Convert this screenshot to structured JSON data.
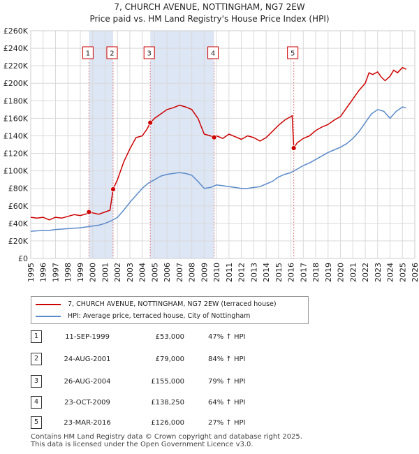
{
  "chart_data": {
    "type": "line",
    "title": "7, CHURCH AVENUE, NOTTINGHAM, NG7 2EW",
    "subtitle": "Price paid vs. HM Land Registry's House Price Index (HPI)",
    "xlabel": "",
    "ylabel": "",
    "xlim": [
      1995,
      2026
    ],
    "ylim": [
      0,
      260000
    ],
    "grid": true,
    "x_ticks": [
      "1995",
      "1996",
      "1997",
      "1998",
      "1999",
      "2000",
      "2001",
      "2002",
      "2003",
      "2004",
      "2005",
      "2006",
      "2007",
      "2008",
      "2009",
      "2010",
      "2011",
      "2012",
      "2013",
      "2014",
      "2015",
      "2016",
      "2017",
      "2018",
      "2019",
      "2020",
      "2021",
      "2022",
      "2023",
      "2024",
      "2025",
      "2026"
    ],
    "y_ticks": [
      {
        "value": 0,
        "label": "£0"
      },
      {
        "value": 20000,
        "label": "£20K"
      },
      {
        "value": 40000,
        "label": "£40K"
      },
      {
        "value": 60000,
        "label": "£60K"
      },
      {
        "value": 80000,
        "label": "£80K"
      },
      {
        "value": 100000,
        "label": "£100K"
      },
      {
        "value": 120000,
        "label": "£120K"
      },
      {
        "value": 140000,
        "label": "£140K"
      },
      {
        "value": 160000,
        "label": "£160K"
      },
      {
        "value": 180000,
        "label": "£180K"
      },
      {
        "value": 200000,
        "label": "£200K"
      },
      {
        "value": 220000,
        "label": "£220K"
      },
      {
        "value": 240000,
        "label": "£240K"
      },
      {
        "value": 260000,
        "label": "£260K"
      }
    ],
    "series": [
      {
        "name": "7, CHURCH AVENUE, NOTTINGHAM, NG7 2EW (terraced house)",
        "color": "#cc0000",
        "x": [
          1995.0,
          1995.5,
          1996.0,
          1996.5,
          1997.0,
          1997.5,
          1998.0,
          1998.5,
          1999.0,
          1999.5,
          1999.7,
          2000.0,
          2000.5,
          2001.0,
          2001.4,
          2001.65,
          2002.0,
          2002.5,
          2003.0,
          2003.5,
          2004.0,
          2004.4,
          2004.65,
          2005.0,
          2005.5,
          2006.0,
          2006.5,
          2007.0,
          2007.5,
          2008.0,
          2008.5,
          2009.0,
          2009.5,
          2009.8,
          2010.0,
          2010.5,
          2011.0,
          2011.5,
          2012.0,
          2012.5,
          2013.0,
          2013.5,
          2014.0,
          2014.5,
          2015.0,
          2015.5,
          2016.0,
          2016.1,
          2016.23,
          2016.5,
          2017.0,
          2017.5,
          2018.0,
          2018.5,
          2019.0,
          2019.5,
          2020.0,
          2020.5,
          2021.0,
          2021.5,
          2022.0,
          2022.3,
          2022.6,
          2023.0,
          2023.3,
          2023.6,
          2024.0,
          2024.3,
          2024.6,
          2025.0,
          2025.3
        ],
        "values": [
          47000,
          46000,
          47000,
          44000,
          47000,
          46000,
          48000,
          50000,
          49000,
          51000,
          53000,
          52000,
          50500,
          53000,
          55000,
          79000,
          90000,
          110000,
          125000,
          138000,
          140000,
          148000,
          155000,
          160000,
          165000,
          170000,
          172000,
          175000,
          173000,
          170000,
          160000,
          142000,
          140000,
          138250,
          140000,
          137000,
          142000,
          139000,
          136000,
          140000,
          138000,
          134000,
          138000,
          145000,
          152000,
          158000,
          162000,
          163000,
          126000,
          132000,
          137000,
          140000,
          146000,
          150000,
          153000,
          158000,
          162000,
          172000,
          182000,
          192000,
          200000,
          212000,
          210000,
          213000,
          207000,
          203000,
          208000,
          215000,
          212000,
          218000,
          216000
        ]
      },
      {
        "name": "HPI: Average price, terraced house, City of Nottingham",
        "color": "#5b8ac9",
        "x": [
          1995.0,
          1995.5,
          1996.0,
          1996.5,
          1997.0,
          1997.5,
          1998.0,
          1998.5,
          1999.0,
          1999.5,
          2000.0,
          2000.5,
          2001.0,
          2001.5,
          2002.0,
          2002.5,
          2003.0,
          2003.5,
          2004.0,
          2004.5,
          2005.0,
          2005.5,
          2006.0,
          2006.5,
          2007.0,
          2007.5,
          2008.0,
          2008.5,
          2009.0,
          2009.5,
          2010.0,
          2010.5,
          2011.0,
          2011.5,
          2012.0,
          2012.5,
          2013.0,
          2013.5,
          2014.0,
          2014.5,
          2015.0,
          2015.5,
          2016.0,
          2016.5,
          2017.0,
          2017.5,
          2018.0,
          2018.5,
          2019.0,
          2019.5,
          2020.0,
          2020.5,
          2021.0,
          2021.5,
          2022.0,
          2022.5,
          2023.0,
          2023.5,
          2024.0,
          2024.5,
          2025.0,
          2025.3
        ],
        "values": [
          31000,
          31500,
          32000,
          32000,
          33000,
          33500,
          34000,
          34500,
          35000,
          36000,
          37000,
          38000,
          40000,
          43000,
          47000,
          55000,
          64000,
          72000,
          80000,
          86000,
          90000,
          94000,
          96000,
          97000,
          98000,
          97000,
          95000,
          88000,
          80000,
          81000,
          84000,
          83000,
          82000,
          81000,
          80000,
          80000,
          81000,
          82000,
          85000,
          88000,
          93000,
          96000,
          98000,
          102000,
          106000,
          109000,
          113000,
          117000,
          121000,
          124000,
          127000,
          131000,
          137000,
          145000,
          155000,
          165000,
          170000,
          168000,
          160000,
          168000,
          173000,
          172000
        ]
      }
    ],
    "sales": [
      {
        "label": "1",
        "x": 1999.7,
        "value": 53000
      },
      {
        "label": "2",
        "x": 2001.65,
        "value": 79000
      },
      {
        "label": "3",
        "x": 2004.65,
        "value": 155000
      },
      {
        "label": "4",
        "x": 2009.8,
        "value": 138250
      },
      {
        "label": "5",
        "x": 2016.23,
        "value": 126000
      }
    ],
    "shaded_periods": [
      [
        1999.7,
        2001.65
      ],
      [
        2004.65,
        2009.8
      ]
    ]
  },
  "legend": {
    "property": "7, CHURCH AVENUE, NOTTINGHAM, NG7 2EW (terraced house)",
    "hpi": "HPI: Average price, terraced house, City of Nottingham"
  },
  "transactions": [
    {
      "num": "1",
      "date": "11-SEP-1999",
      "price": "£53,000",
      "hpi": "47% ↑ HPI"
    },
    {
      "num": "2",
      "date": "24-AUG-2001",
      "price": "£79,000",
      "hpi": "84% ↑ HPI"
    },
    {
      "num": "3",
      "date": "26-AUG-2004",
      "price": "£155,000",
      "hpi": "79% ↑ HPI"
    },
    {
      "num": "4",
      "date": "23-OCT-2009",
      "price": "£138,250",
      "hpi": "64% ↑ HPI"
    },
    {
      "num": "5",
      "date": "23-MAR-2016",
      "price": "£126,000",
      "hpi": "27% ↑ HPI"
    }
  ],
  "footer": {
    "line1": "Contains HM Land Registry data © Crown copyright and database right 2025.",
    "line2": "This data is licensed under the Open Government Licence v3.0."
  },
  "colors": {
    "property_line": "#cc0000",
    "hpi_line": "#5b8ac9",
    "shade": "#dde6f5",
    "grid": "#d9d9d9",
    "sale_marker_line": "#e08080"
  }
}
